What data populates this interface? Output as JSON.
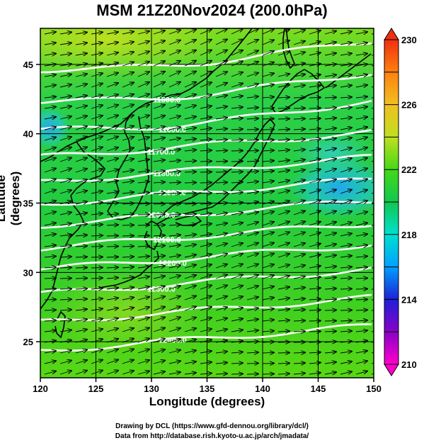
{
  "title": "MSM 21Z20Nov2024 (200.0hPa)",
  "xlabel": "Longitude (degrees)",
  "ylabel": "Latitude  (degrees)",
  "credits": {
    "line1": "Drawing by DCL (https://www.gfd-dennou.org/library/dcl/)",
    "line2": "Data from http://database.rish.kyoto-u.ac.jp/arch/jmadata/"
  },
  "map": {
    "lon_range": [
      120,
      150
    ],
    "lat_range": [
      22.4,
      47.6
    ],
    "lon_ticks": [
      "120",
      "125",
      "130",
      "135",
      "140",
      "145",
      "150"
    ],
    "lat_ticks": [
      "25",
      "30",
      "35",
      "40",
      "45"
    ],
    "grid": true,
    "contour_labels": [
      "11500.0",
      "11600.0",
      "11700.0",
      "11800.0",
      "11900.0",
      "12000.0",
      "12100.0",
      "12200.0",
      "12300.0",
      "12400.0"
    ],
    "colorbar": {
      "min": 210,
      "max": 230,
      "tick_labels": [
        "230",
        "226",
        "222",
        "218",
        "214",
        "210"
      ],
      "colors": [
        "#ff00cc",
        "#8a00c8",
        "#1e20d8",
        "#00a0ff",
        "#00e0d0",
        "#10c850",
        "#44d818",
        "#c0e020",
        "#f0c020",
        "#ff8010",
        "#f03010"
      ]
    }
  }
}
